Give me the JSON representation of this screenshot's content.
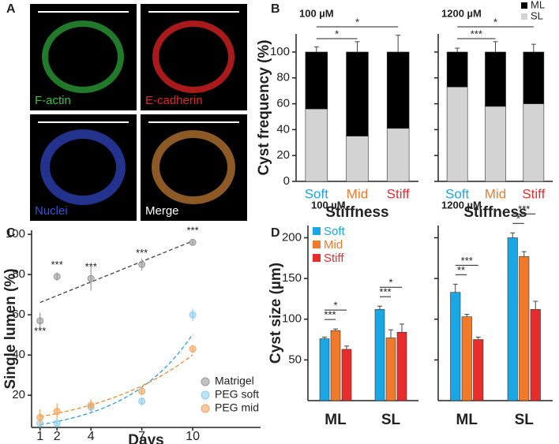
{
  "panel_labels": [
    "A",
    "B",
    "C",
    "D"
  ],
  "images": [
    "F-actin",
    "E-cadherin",
    "Nuclei",
    "Merge"
  ],
  "chart_data": [
    {
      "type": "stacked_bar",
      "title": "100 µM",
      "ylabel": "Cyst frequency (%)",
      "xlabel": "Stiffness",
      "categories": [
        "Soft",
        "Mid",
        "Stiff"
      ],
      "category_colors": [
        "#1aa7e6",
        "#f07a2a",
        "#e82b2b"
      ],
      "series": [
        {
          "name": "SL",
          "color": "#d3d3d3",
          "values": [
            56,
            35,
            41
          ],
          "errors": [
            4,
            7,
            6
          ]
        },
        {
          "name": "ML",
          "color": "#000000",
          "values": [
            44,
            65,
            59
          ],
          "errors": [
            4,
            8,
            13
          ]
        }
      ],
      "ylim": [
        0,
        114
      ],
      "yticks": [
        0,
        20,
        40,
        60,
        80,
        100
      ],
      "brackets": [
        {
          "text": "*",
          "span": [
            "Soft",
            "Mid"
          ]
        },
        {
          "text": "*",
          "span": [
            "Soft",
            "Stiff"
          ]
        }
      ]
    },
    {
      "type": "stacked_bar",
      "title": "1200 µM",
      "xlabel": "Stiffness",
      "categories": [
        "Soft",
        "Mid",
        "Stiff"
      ],
      "category_colors": [
        "#1aa7e6",
        "#f07a2a",
        "#e82b2b"
      ],
      "series": [
        {
          "name": "SL",
          "color": "#d3d3d3",
          "values": [
            73,
            58,
            60
          ],
          "errors": [
            10,
            15,
            8
          ]
        },
        {
          "name": "ML",
          "color": "#000000",
          "values": [
            27,
            42,
            40
          ],
          "errors": [
            3,
            8,
            6
          ]
        }
      ],
      "ylim": [
        0,
        114
      ],
      "yticks": [
        0,
        20,
        40,
        60,
        80,
        100
      ],
      "legend": "upper right",
      "brackets": [
        {
          "text": "***",
          "span": [
            "Soft",
            "Mid"
          ]
        },
        {
          "text": "*",
          "span": [
            "Soft",
            "Stiff"
          ]
        }
      ]
    },
    {
      "type": "scatter",
      "xlabel": "Days",
      "ylabel": "Single lumen (%)",
      "x": [
        1,
        2,
        4,
        7,
        10
      ],
      "xlim": [
        0.5,
        14
      ],
      "xticks": [
        1,
        2,
        4,
        7,
        10
      ],
      "ylim": [
        4,
        102
      ],
      "yticks": [
        20,
        40,
        60,
        80,
        100
      ],
      "series": [
        {
          "name": "Matrigel",
          "color": "#9a9a9a",
          "trend_color": "#444444",
          "fit": "linear",
          "values": [
            57,
            79,
            78,
            85,
            96
          ],
          "errors": [
            4,
            2,
            6,
            3,
            1
          ],
          "point_labels": [
            "***",
            "***",
            "***",
            "***",
            "***"
          ]
        },
        {
          "name": "PEG soft",
          "color": "#8ecfee",
          "trend_color": "#2a9fe0",
          "fit": "exponential",
          "values": [
            6,
            6,
            14,
            17,
            60
          ],
          "errors": [
            2,
            2,
            2,
            2,
            3
          ]
        },
        {
          "name": "PEG mid",
          "color": "#f4a560",
          "trend_color": "#f08a30",
          "fit": "exponential",
          "values": [
            9,
            12,
            15,
            22,
            43
          ],
          "errors": [
            4,
            4,
            3,
            2,
            2
          ]
        }
      ],
      "legend": "lower right"
    },
    {
      "type": "grouped_bar",
      "title": "100 µM",
      "ylabel": "Cyst size (µm)",
      "categories": [
        "ML",
        "SL"
      ],
      "series": [
        {
          "name": "Soft",
          "color": "#1aa7e6",
          "values": [
            76,
            112
          ],
          "errors": [
            2,
            4
          ]
        },
        {
          "name": "Mid",
          "color": "#f07a2a",
          "values": [
            86,
            77
          ],
          "errors": [
            2,
            10
          ]
        },
        {
          "name": "Stiff",
          "color": "#e82b2b",
          "values": [
            63,
            84
          ],
          "errors": [
            4,
            10
          ]
        }
      ],
      "ylim": [
        0,
        215
      ],
      "yticks": [
        50,
        100,
        150,
        200
      ],
      "legend": "upper left",
      "brackets": [
        {
          "text": "***",
          "group": "ML",
          "span": [
            "Soft",
            "Mid"
          ]
        },
        {
          "text": "*",
          "group": "ML",
          "span": [
            "Soft",
            "Stiff"
          ]
        },
        {
          "text": "***",
          "group": "SL",
          "span": [
            "Soft",
            "Mid"
          ]
        },
        {
          "text": "*",
          "group": "SL",
          "span": [
            "Soft",
            "Stiff"
          ]
        }
      ]
    },
    {
      "type": "grouped_bar",
      "title": "1200 µM",
      "categories": [
        "ML",
        "SL"
      ],
      "series": [
        {
          "name": "Soft",
          "color": "#1aa7e6",
          "values": [
            133,
            200
          ],
          "errors": [
            10,
            6
          ]
        },
        {
          "name": "Mid",
          "color": "#f07a2a",
          "values": [
            103,
            177
          ],
          "errors": [
            3,
            6
          ]
        },
        {
          "name": "Stiff",
          "color": "#e82b2b",
          "values": [
            75,
            112
          ],
          "errors": [
            3,
            10
          ]
        }
      ],
      "ylim": [
        0,
        215
      ],
      "yticks": [
        50,
        100,
        150,
        200
      ],
      "brackets": [
        {
          "text": "**",
          "group": "ML",
          "span": [
            "Soft",
            "Mid"
          ]
        },
        {
          "text": "***",
          "group": "ML",
          "span": [
            "Soft",
            "Stiff"
          ]
        },
        {
          "text": "*",
          "group": "SL",
          "span": [
            "Soft",
            "Mid"
          ]
        },
        {
          "text": "***",
          "group": "SL",
          "span": [
            "Soft",
            "Stiff"
          ]
        }
      ]
    }
  ]
}
